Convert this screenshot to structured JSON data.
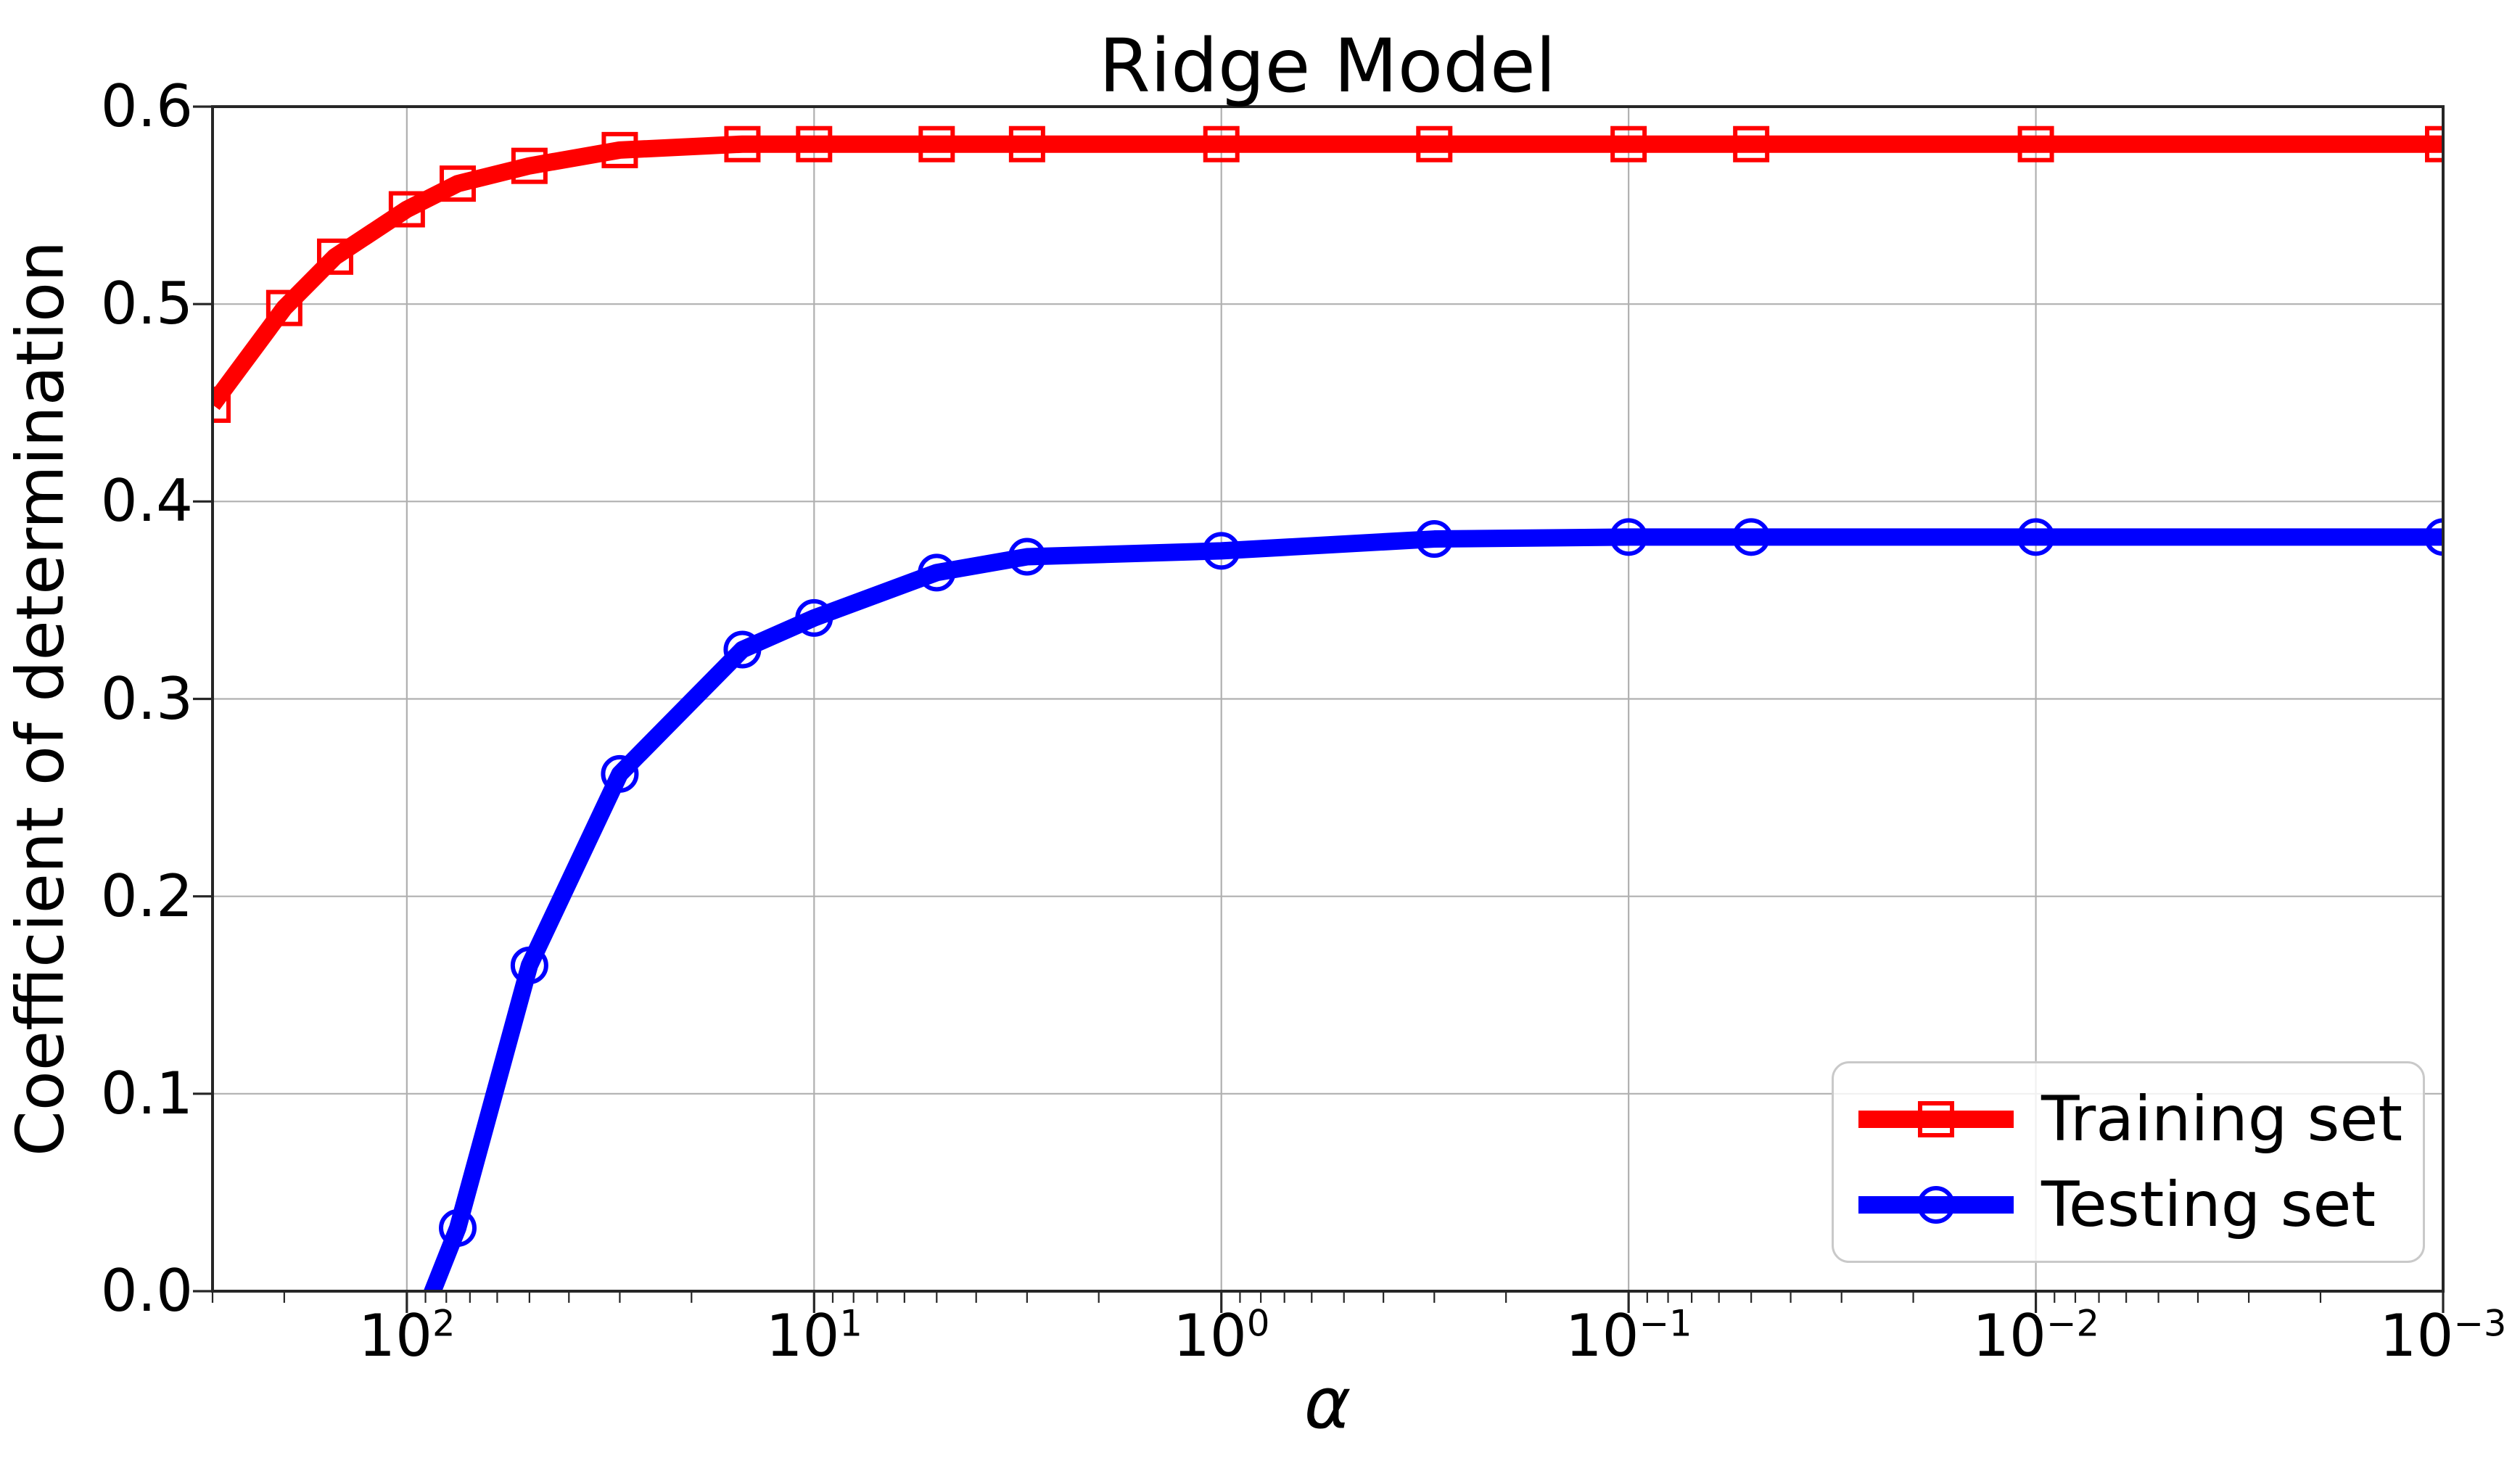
{
  "chart_data": {
    "type": "line",
    "title": "Ridge Model",
    "xlabel": "α",
    "ylabel": "Coefficient of determination",
    "x_scale": "log",
    "x_axis_reversed": true,
    "xlim": [
      300,
      0.001
    ],
    "ylim": [
      0.0,
      0.6
    ],
    "grid": true,
    "legend_position": "lower right",
    "x": [
      300,
      200,
      150,
      100,
      75,
      50,
      30,
      15,
      10,
      5,
      3,
      1,
      0.3,
      0.1,
      0.05,
      0.01,
      0.001
    ],
    "series": [
      {
        "name": "Training set",
        "color": "#ff0000",
        "marker": "square",
        "values": [
          0.449,
          0.498,
          0.524,
          0.548,
          0.561,
          0.57,
          0.578,
          0.581,
          0.581,
          0.581,
          0.581,
          0.581,
          0.581,
          0.581,
          0.581,
          0.581,
          0.581
        ]
      },
      {
        "name": "Testing set",
        "color": "#0000ff",
        "marker": "circle",
        "values": [
          null,
          null,
          null,
          -0.033,
          0.032,
          0.165,
          0.262,
          0.325,
          0.341,
          0.364,
          0.372,
          0.375,
          0.381,
          0.382,
          0.382,
          0.382,
          0.382
        ]
      }
    ],
    "x_tick_base": "10",
    "x_ticks": [
      {
        "power": 2,
        "text": "2"
      },
      {
        "power": 1,
        "text": "1"
      },
      {
        "power": 0,
        "text": "0"
      },
      {
        "power": -1,
        "text": "−1"
      },
      {
        "power": -2,
        "text": "−2"
      },
      {
        "power": -3,
        "text": "−3"
      }
    ],
    "y_ticks": [
      "0.0",
      "0.1",
      "0.2",
      "0.3",
      "0.4",
      "0.5",
      "0.6"
    ],
    "colors": {
      "grid": "#b0b0b0",
      "spine": "#262626",
      "tick": "#262626",
      "text": "#000000",
      "legend_border": "#c9c9c9"
    }
  }
}
